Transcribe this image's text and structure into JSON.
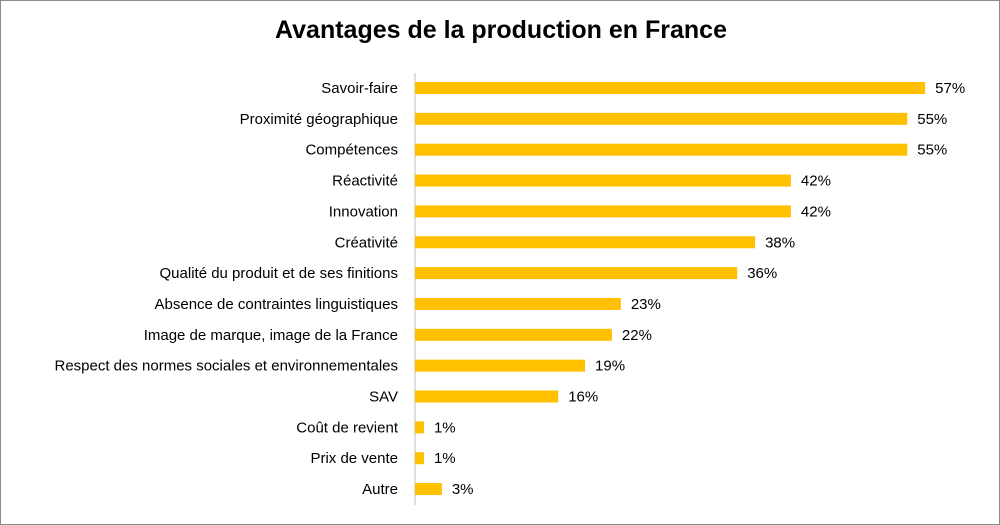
{
  "chart_data": {
    "type": "bar",
    "orientation": "horizontal",
    "title": "Avantages de la production en France",
    "categories": [
      "Savoir-faire",
      "Proximité géographique",
      "Compétences",
      "Réactivité",
      "Innovation",
      "Créativité",
      "Qualité du produit et de ses finitions",
      "Absence de contraintes linguistiques",
      "Image de marque, image de la France",
      "Respect des normes sociales et environnementales",
      "SAV",
      "Coût de revient",
      "Prix de vente",
      "Autre"
    ],
    "values": [
      57,
      55,
      55,
      42,
      42,
      38,
      36,
      23,
      22,
      19,
      16,
      1,
      1,
      3
    ],
    "value_labels": [
      "57%",
      "55%",
      "55%",
      "42%",
      "42%",
      "38%",
      "36%",
      "23%",
      "22%",
      "19%",
      "16%",
      "1%",
      "1%",
      "3%"
    ],
    "unit": "%",
    "xlim": [
      0,
      60
    ],
    "grid": false,
    "legend": "none",
    "bar_color": "#FFC000"
  }
}
